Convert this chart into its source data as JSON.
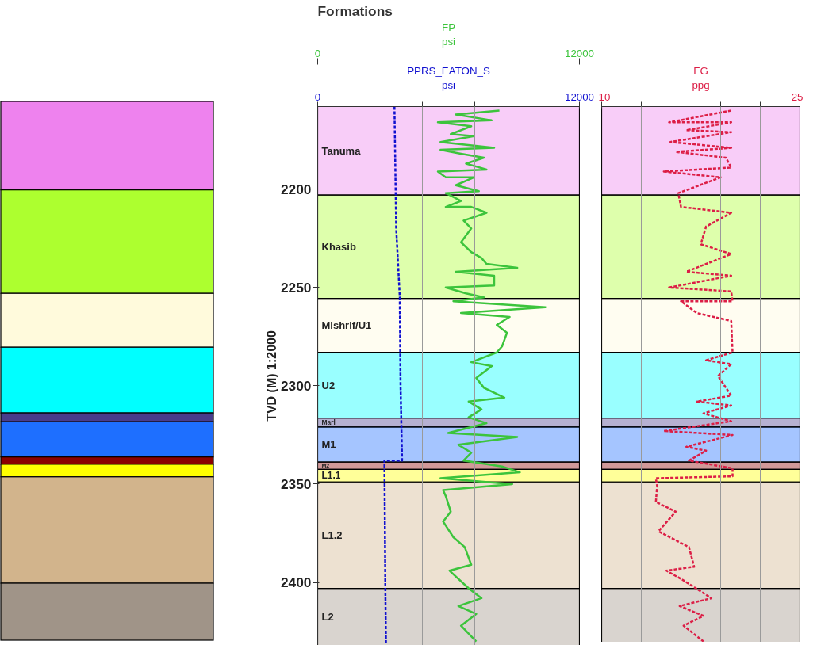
{
  "chart_data": [
    {
      "type": "line",
      "title": "Formations",
      "ylabel": "TVD (M) 1:2000",
      "xlabel": "psi",
      "x2label": "psi",
      "xlim": [
        0,
        12000
      ],
      "xticks": [
        0,
        {
          "value": 2400,
          "label": null
        },
        {
          "value": 4800,
          "label": null
        },
        {
          "value": 7200,
          "label": null
        },
        {
          "value": 9600,
          "label": null
        },
        12000
      ],
      "x2lim": [
        0,
        12000
      ],
      "x2ticks": [
        0,
        12000
      ],
      "ylim": [
        2432,
        2158
      ],
      "yticks": [
        2200,
        2250,
        2300,
        2350,
        2400
      ],
      "grid": "x",
      "series": [
        {
          "name": "FP",
          "color": "#3cc43c",
          "axis": "x2",
          "line_style": "solid",
          "x": [
            8330,
            6330,
            7980,
            5510,
            7040,
            6100,
            7160,
            5630,
            8090,
            5630,
            6570,
            7620,
            6800,
            7740,
            5510,
            5870,
            7160,
            6330,
            7390,
            5870,
            6570,
            5870,
            7040,
            7740,
            6690,
            7040,
            6570,
            7040,
            7510,
            7740,
            9150,
            6330,
            8090,
            8090,
            5870,
            6800,
            7620,
            6220,
            10440,
            6570,
            8800,
            8210,
            8680,
            8450,
            8210,
            7040,
            7980,
            7270,
            7620,
            8560,
            6920,
            7510,
            6920,
            7740,
            5980,
            9150,
            6450,
            7040,
            6690,
            8450,
            9270,
            5630,
            8920,
            5750,
            5870,
            6100,
            5750,
            6220,
            6740,
            7040,
            6040,
            6920,
            7510,
            6450,
            7270,
            6570,
            7270
          ],
          "values": [
            2160,
            2162,
            2165,
            2166,
            2168,
            2172,
            2173,
            2176,
            2179,
            2180,
            2182,
            2184,
            2187,
            2190,
            2191,
            2194,
            2194,
            2198,
            2201,
            2202,
            2206,
            2209,
            2209,
            2212,
            2216,
            2220,
            2227,
            2232,
            2235,
            2238,
            2240,
            2242,
            2244,
            2249,
            2250,
            2253,
            2255,
            2257,
            2260,
            2263,
            2265,
            2269,
            2273,
            2280,
            2283,
            2288,
            2290,
            2296,
            2301,
            2306,
            2308,
            2312,
            2316,
            2319,
            2324,
            2326,
            2330,
            2334,
            2338,
            2341,
            2344,
            2347,
            2350,
            2353,
            2356,
            2364,
            2369,
            2377,
            2382,
            2391,
            2394,
            2403,
            2408,
            2412,
            2416,
            2422,
            2430
          ]
        },
        {
          "name": "PPRS_EATON_S",
          "color": "#1010d0",
          "line_style": "dashed",
          "x": [
            3520,
            3600,
            3765,
            3765,
            3800,
            3870,
            3060,
            3100,
            3130
          ],
          "values": [
            2158,
            2220,
            2255,
            2257,
            2300,
            2338,
            2338,
            2400,
            2432
          ]
        }
      ],
      "bands": [
        {
          "axis": "y",
          "from": 2158,
          "to": 2203,
          "label": "Tanuma",
          "color": "#ee82ee"
        },
        {
          "axis": "y",
          "from": 2203,
          "to": 2255.6,
          "label": "Khasib",
          "color": "#adff2f"
        },
        {
          "axis": "y",
          "from": 2255.6,
          "to": 2283,
          "label": "Mishrif/U1",
          "color": "#fffadc"
        },
        {
          "axis": "y",
          "from": 2283,
          "to": 2316.4,
          "label": "U2",
          "color": "#00ffff"
        },
        {
          "axis": "y",
          "from": 2316.4,
          "to": 2320.9,
          "label": "Marl",
          "color": "#483d8b"
        },
        {
          "axis": "y",
          "from": 2320.9,
          "to": 2338.8,
          "label": "M1",
          "color": "#1e6fff"
        },
        {
          "axis": "y",
          "from": 2338.8,
          "to": 2342.5,
          "label": "M2",
          "color": "#8b0000"
        },
        {
          "axis": "y",
          "from": 2342.5,
          "to": 2348.9,
          "label": "L1.1",
          "color": "#ffff00"
        },
        {
          "axis": "y",
          "from": 2348.9,
          "to": 2403,
          "label": "L1.2",
          "color": "#d2b48c"
        },
        {
          "axis": "y",
          "from": 2403,
          "to": 2432,
          "label": "L2",
          "color": "#a09488"
        }
      ]
    },
    {
      "type": "line",
      "xlabel": "ppg",
      "xlim": [
        10,
        25
      ],
      "xticks": [
        10,
        {
          "value": 13,
          "label": null
        },
        {
          "value": 16,
          "label": null
        },
        {
          "value": 19,
          "label": null
        },
        {
          "value": 22,
          "label": null
        },
        25
      ],
      "ylim": [
        2432,
        2158
      ],
      "yticks": [
        2200,
        2250,
        2300,
        2350,
        2400
      ],
      "tick_labels": "x",
      "grid": "x",
      "series": [
        {
          "name": "FG",
          "color": "#dc1e46",
          "line_style": "dashed",
          "x": [
            19.8,
            15.1,
            19.8,
            16.4,
            19.8,
            15.2,
            19.8,
            15.6,
            19.4,
            19.8,
            14.7,
            19.0,
            15.8,
            16.0,
            19.8,
            17.9,
            17.5,
            19.8,
            16.4,
            19.8,
            15.1,
            19.8,
            19.9,
            16.0,
            17.2,
            19.8,
            19.9,
            17.9,
            19.8,
            18.8,
            19.8,
            17.2,
            19.8,
            17.7,
            19.8,
            14.7,
            19.9,
            16.4,
            17.9,
            16.6,
            19.9,
            19.9,
            14.1,
            14.2,
            14.1,
            15.6,
            14.3,
            16.6,
            17.0,
            14.9,
            16.2,
            18.3,
            15.9,
            17.7,
            16.2,
            17.7
          ],
          "values": [
            2160,
            2166,
            2166,
            2170,
            2171,
            2176,
            2179,
            2181,
            2184,
            2189,
            2191,
            2194,
            2202,
            2209,
            2212,
            2219,
            2228,
            2233,
            2242,
            2244,
            2250,
            2252,
            2257,
            2257,
            2263,
            2267,
            2283,
            2287,
            2289,
            2295,
            2305,
            2308,
            2310,
            2314,
            2318,
            2323,
            2325,
            2331,
            2333,
            2338,
            2342,
            2346,
            2347,
            2351,
            2359,
            2364,
            2374,
            2382,
            2392,
            2394,
            2399,
            2408,
            2412,
            2417,
            2422,
            2430
          ]
        }
      ],
      "bands": [
        {
          "axis": "y",
          "from": 2158,
          "to": 2203,
          "color": "#ee82ee"
        },
        {
          "axis": "y",
          "from": 2203,
          "to": 2255.6,
          "color": "#adff2f"
        },
        {
          "axis": "y",
          "from": 2255.6,
          "to": 2283,
          "color": "#fffadc"
        },
        {
          "axis": "y",
          "from": 2283,
          "to": 2316.4,
          "color": "#00ffff"
        },
        {
          "axis": "y",
          "from": 2316.4,
          "to": 2320.9,
          "color": "#483d8b"
        },
        {
          "axis": "y",
          "from": 2320.9,
          "to": 2338.8,
          "color": "#1e6fff"
        },
        {
          "axis": "y",
          "from": 2338.8,
          "to": 2342.5,
          "color": "#8b0000"
        },
        {
          "axis": "y",
          "from": 2342.5,
          "to": 2348.9,
          "color": "#ffff00"
        },
        {
          "axis": "y",
          "from": 2348.9,
          "to": 2403,
          "color": "#d2b48c"
        },
        {
          "axis": "y",
          "from": 2403,
          "to": 2432,
          "color": "#a09488"
        }
      ]
    }
  ]
}
